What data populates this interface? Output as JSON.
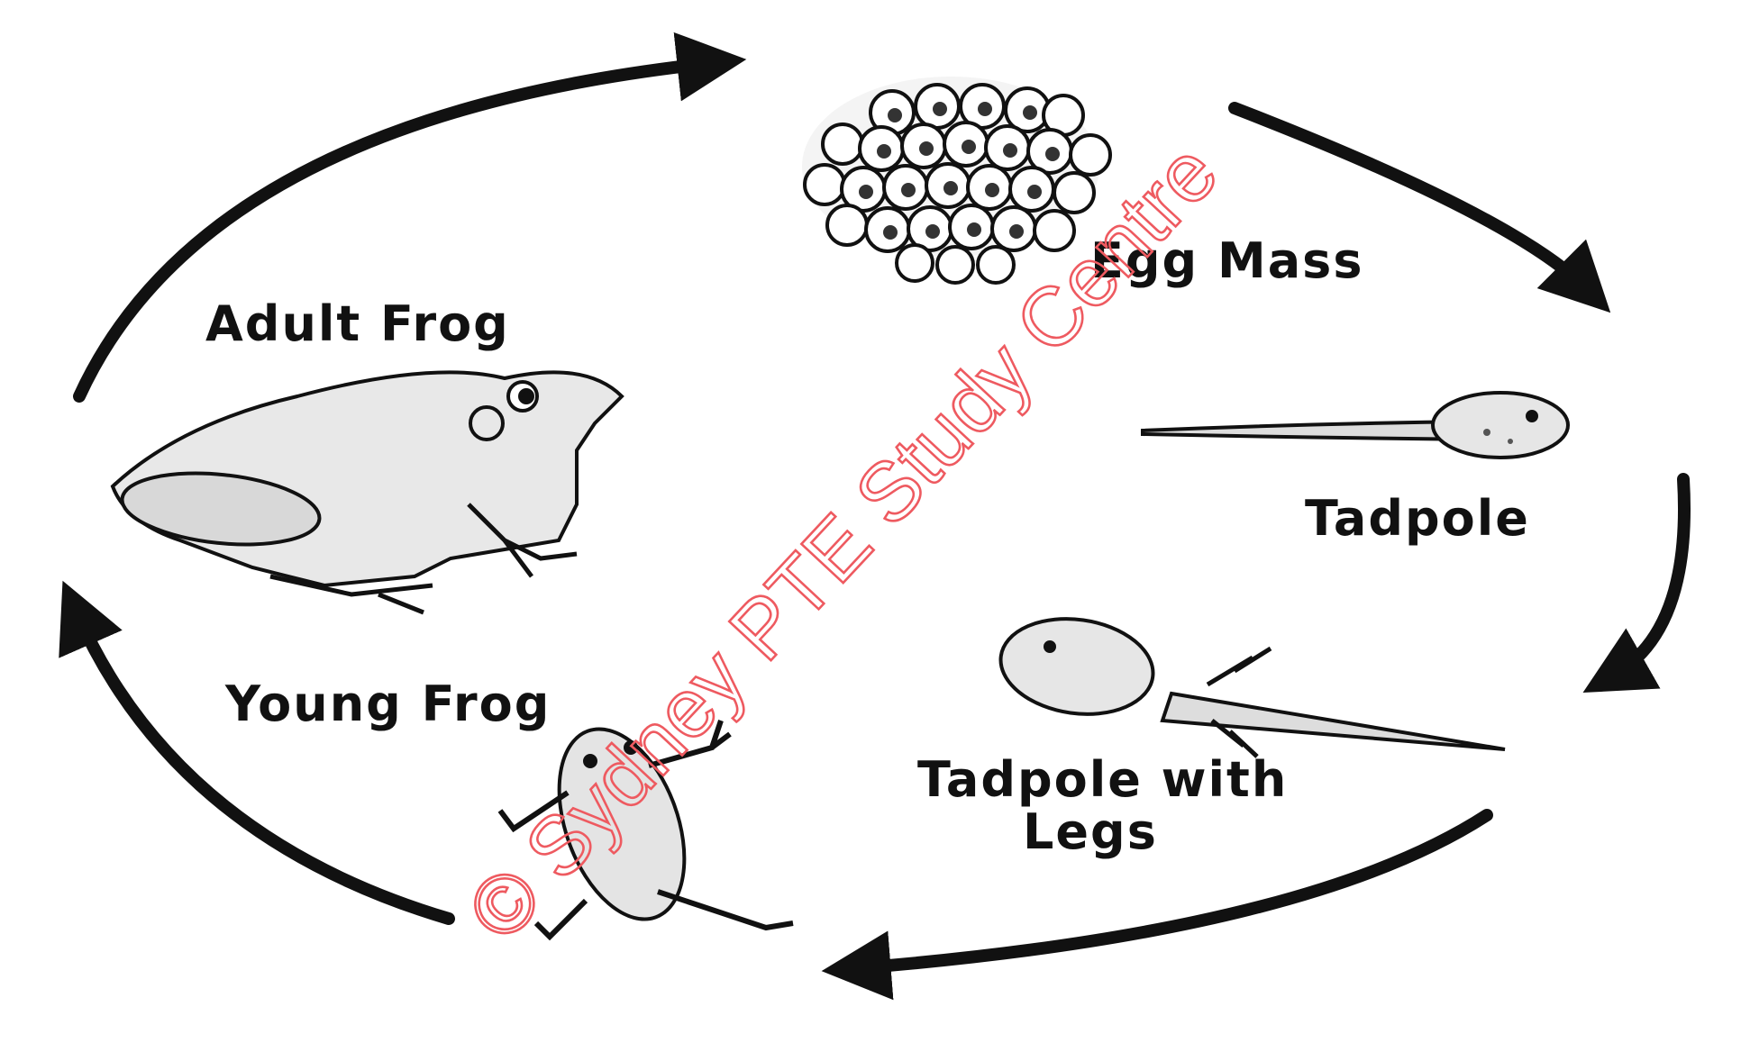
{
  "diagram": {
    "stages": [
      {
        "id": "egg-mass",
        "label": "Egg Mass"
      },
      {
        "id": "tadpole",
        "label": "Tadpole"
      },
      {
        "id": "tadpole-with-legs",
        "label_line1": "Tadpole with",
        "label_line2": "Legs"
      },
      {
        "id": "young-frog",
        "label": "Young Frog"
      },
      {
        "id": "adult-frog",
        "label": "Adult Frog"
      }
    ],
    "watermark": "© Sydney PTE Study Centre",
    "colors": {
      "ink": "#111111",
      "watermark": "#ee5a60",
      "background": "#ffffff"
    }
  }
}
